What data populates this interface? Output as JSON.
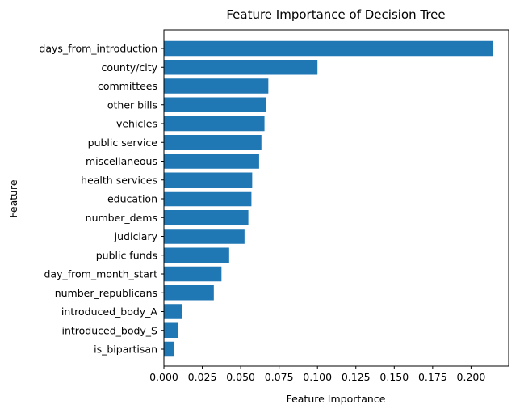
{
  "chart_data": {
    "type": "bar",
    "orientation": "horizontal",
    "title": "Feature Importance of Decision Tree",
    "xlabel": "Feature Importance",
    "ylabel": "Feature",
    "xlim": [
      0.0,
      0.2245
    ],
    "x_ticks": [
      "0.000",
      "0.025",
      "0.050",
      "0.075",
      "0.100",
      "0.125",
      "0.150",
      "0.175",
      "0.200"
    ],
    "categories": [
      "days_from_introduction",
      "county/city",
      "committees",
      "other bills",
      "vehicles",
      "public service",
      "miscellaneous",
      "health services",
      "education",
      "number_dems",
      "judiciary",
      "public funds",
      "day_from_month_start",
      "number_republicans",
      "introduced_body_A",
      "introduced_body_S",
      "is_bipartisan"
    ],
    "values": [
      0.214,
      0.1,
      0.068,
      0.0665,
      0.0655,
      0.0635,
      0.062,
      0.0575,
      0.057,
      0.055,
      0.0525,
      0.0425,
      0.0375,
      0.0325,
      0.012,
      0.009,
      0.0065
    ],
    "bar_color": "#1f77b4",
    "grid": false,
    "legend": "none"
  }
}
